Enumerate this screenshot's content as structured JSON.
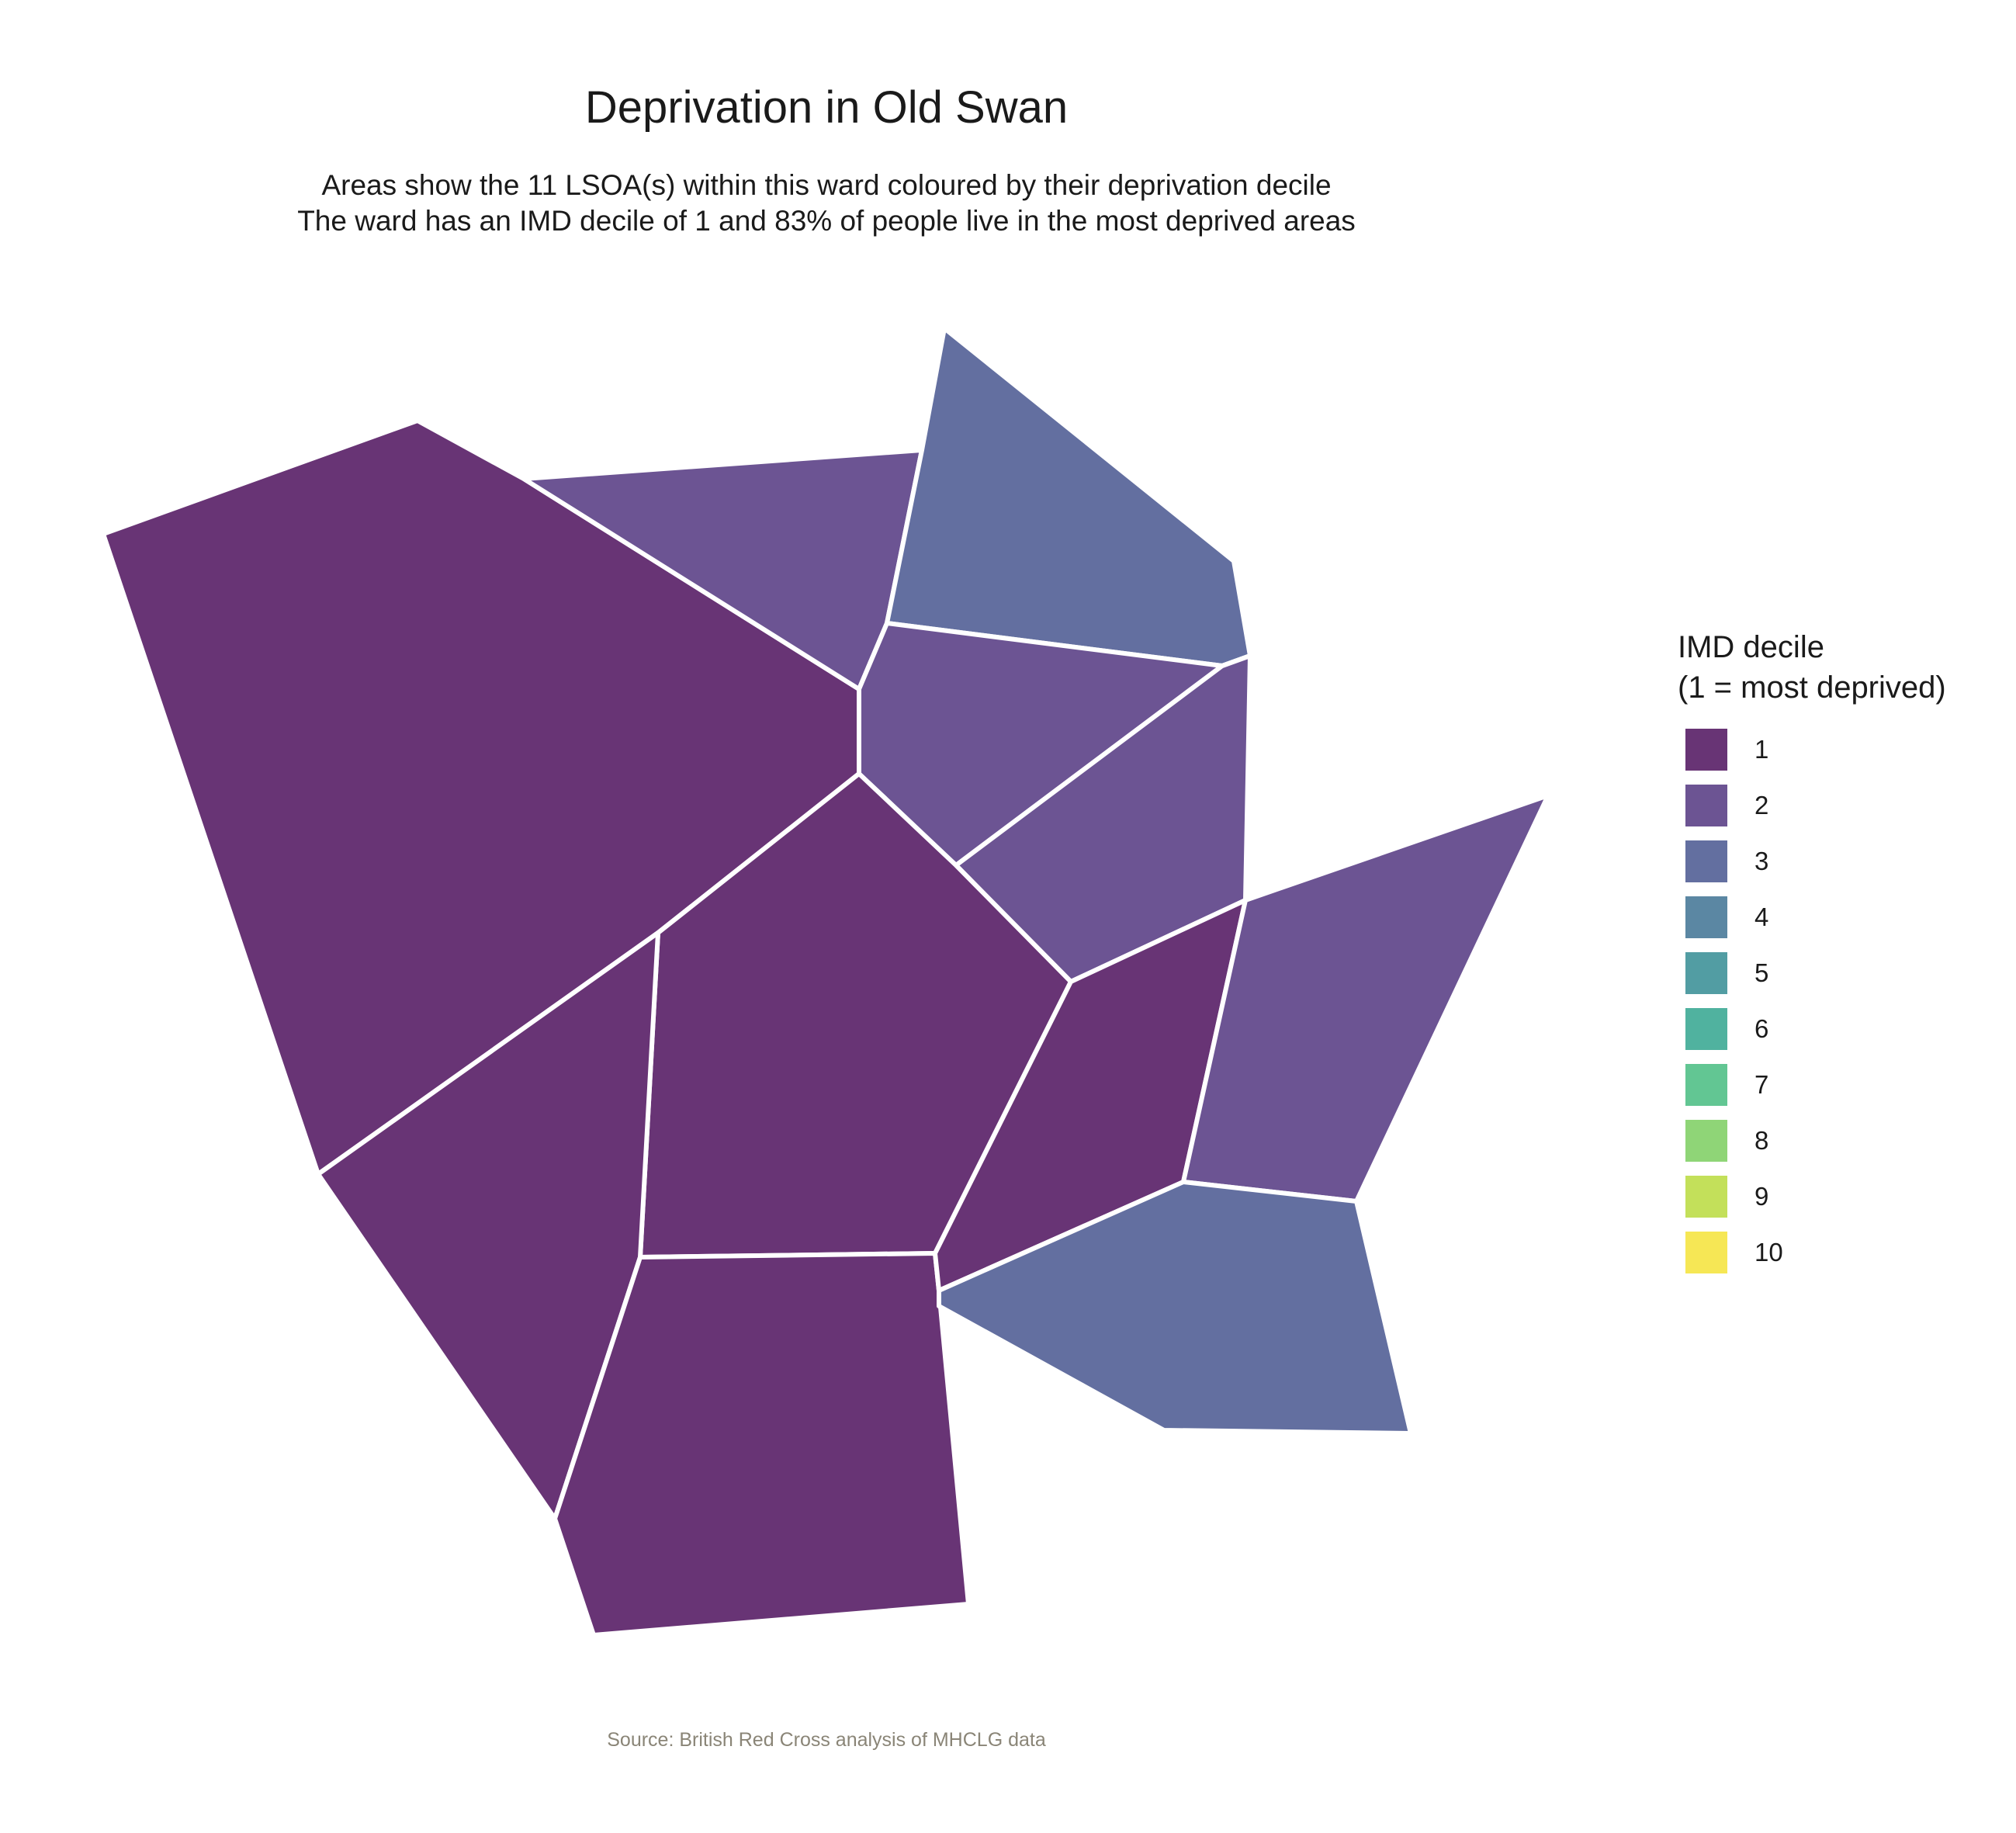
{
  "title": "Deprivation in Old Swan",
  "subtitle_line1": "Areas show the 11 LSOA(s) within this ward coloured by their deprivation decile",
  "subtitle_line2": "The ward has an IMD decile of 1 and 83% of people live in the most deprived areas",
  "caption": "Source: British Red Cross analysis of MHCLG data",
  "legend": {
    "title_line1": "IMD decile",
    "title_line2": "(1 = most deprived)",
    "items": [
      {
        "label": "1",
        "color": "#683475"
      },
      {
        "label": "2",
        "color": "#6c5493"
      },
      {
        "label": "3",
        "color": "#636fa0"
      },
      {
        "label": "4",
        "color": "#5b87a3"
      },
      {
        "label": "5",
        "color": "#529da3"
      },
      {
        "label": "6",
        "color": "#50b29f"
      },
      {
        "label": "7",
        "color": "#62c693"
      },
      {
        "label": "8",
        "color": "#8fd577"
      },
      {
        "label": "9",
        "color": "#c3e05a"
      },
      {
        "label": "10",
        "color": "#f6e755"
      }
    ]
  },
  "map": {
    "border_color": "#ffffff",
    "areas": [
      {
        "name": "lsoa-west-large",
        "decile": 1
      },
      {
        "name": "lsoa-north",
        "decile": 2
      },
      {
        "name": "lsoa-northeast",
        "decile": 3
      },
      {
        "name": "lsoa-center-north",
        "decile": 2
      },
      {
        "name": "lsoa-east-upper",
        "decile": 2
      },
      {
        "name": "lsoa-center",
        "decile": 1
      },
      {
        "name": "lsoa-southwest",
        "decile": 1
      },
      {
        "name": "lsoa-south",
        "decile": 1
      },
      {
        "name": "lsoa-east-mid",
        "decile": 1
      },
      {
        "name": "lsoa-far-east",
        "decile": 2
      },
      {
        "name": "lsoa-southeast",
        "decile": 3
      }
    ]
  }
}
